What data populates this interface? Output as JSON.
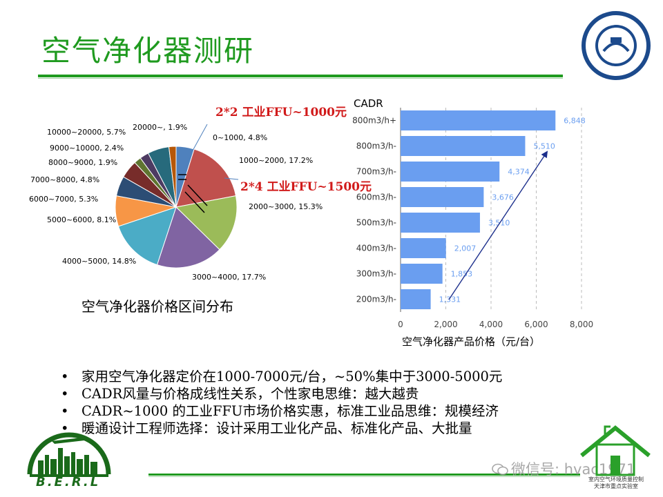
{
  "title": "空气净化器测研",
  "pie_caption": "空气净化器价格区间分布",
  "bar_xlabel": "空气净化器产品价格（元/台）",
  "bar_ylabel": "CADR",
  "notes": {
    "ffu_2x2": "2*2 工业FFU~1000元",
    "ffu_2x4": "2*4 工业FFU~1500元"
  },
  "bullets": [
    "家用空气净化器定价在1000-7000元/台，~50%集中于3000-5000元",
    "CADR风量与价格成线性关系，个性家电思维：越大越贵",
    "CADR~1000 的工业FFU市场价格实惠，标准工业品思维：规模经济",
    "暖通设计工程师选择：设计采用工业化产品、标准化产品、大批量"
  ],
  "bullet_symbol": "•",
  "footer": {
    "berl": "B.E.R.L",
    "wechat": "微信号: hvac1971",
    "lab_caption_1": "室内空气环境质量控制",
    "lab_caption_2": "天津市重点实验室"
  },
  "colors": {
    "title_green": "#1f9a1f",
    "bar_blue": "#6a9ef0",
    "note_red": "#d11a1a"
  },
  "chart_data": [
    {
      "type": "pie",
      "slices": [
        {
          "label": "0~1000, 4.8%",
          "value": 4.8,
          "color": "#4f81bd"
        },
        {
          "label": "1000~2000, 17.2%",
          "value": 17.2,
          "color": "#c0504d"
        },
        {
          "label": "2000~3000, 15.3%",
          "value": 15.3,
          "color": "#9bbb59"
        },
        {
          "label": "3000~4000, 17.7%",
          "value": 17.7,
          "color": "#8064a2"
        },
        {
          "label": "4000~5000, 14.8%",
          "value": 14.8,
          "color": "#4bacc6"
        },
        {
          "label": "5000~6000, 8.1%",
          "value": 8.1,
          "color": "#f79646"
        },
        {
          "label": "6000~7000, 5.3%",
          "value": 5.3,
          "color": "#2c4d75"
        },
        {
          "label": "7000~8000, 4.8%",
          "value": 4.8,
          "color": "#772c2a"
        },
        {
          "label": "8000~9000, 1.9%",
          "value": 1.9,
          "color": "#5f7530"
        },
        {
          "label": "9000~10000, 2.4%",
          "value": 2.4,
          "color": "#4d3b62"
        },
        {
          "label": "10000~20000, 5.7%",
          "value": 5.7,
          "color": "#276a7c"
        },
        {
          "label": "20000~, 1.9%",
          "value": 1.9,
          "color": "#b65708"
        }
      ]
    },
    {
      "type": "bar",
      "orientation": "horizontal",
      "categories": [
        "800m3/h+",
        "800m3/h-",
        "700m3/h-",
        "600m3/h-",
        "500m3/h-",
        "400m3/h-",
        "300m3/h-",
        "200m3/h-"
      ],
      "values": [
        6848,
        5510,
        4374,
        3676,
        3510,
        2007,
        1853,
        1331
      ],
      "data_labels": [
        "6,848",
        "5,510",
        "4,374",
        "3,676",
        "3,510",
        "2,007",
        "1,853",
        "1,331"
      ],
      "xlim": [
        0,
        8000
      ],
      "xticks": [
        "0",
        "2,000",
        "4,000",
        "6,000",
        "8,000"
      ],
      "ylabel": "CADR",
      "xlabel": "空气净化器产品价格（元/台）",
      "grid": "vertical dashed"
    }
  ]
}
